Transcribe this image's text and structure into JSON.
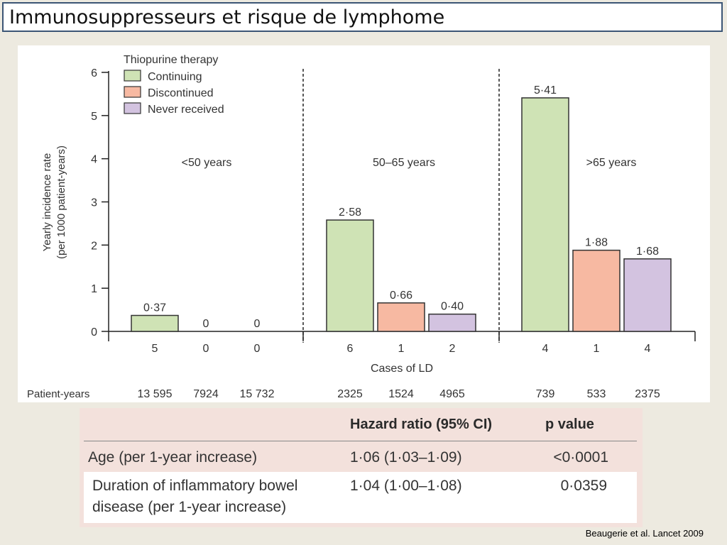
{
  "slide": {
    "title": "Immunosuppresseurs et risque de lymphome",
    "citation": "Beaugerie et al. Lancet 2009"
  },
  "chart_data": {
    "type": "bar",
    "ylabel_line1": "Yearly incidence rate",
    "ylabel_line2": "(per 1000 patient-years)",
    "xlabel": "Cases of LD",
    "ylim": [
      0,
      6
    ],
    "yticks": [
      "0",
      "1",
      "2",
      "3",
      "4",
      "5",
      "6"
    ],
    "legend": {
      "title": "Thiopurine therapy",
      "placement": "top-left"
    },
    "series": [
      {
        "name": "Continuing",
        "color": "#cfe3b5"
      },
      {
        "name": "Discontinued",
        "color": "#f7b9a2"
      },
      {
        "name": "Never received",
        "color": "#d3c3e0"
      }
    ],
    "groups": [
      {
        "label": "<50 years",
        "values": [
          0.37,
          0,
          0
        ],
        "value_labels": [
          "0·37",
          "0",
          "0"
        ],
        "cases": [
          "5",
          "0",
          "0"
        ],
        "patient_years": [
          "13 595",
          "7924",
          "15 732"
        ]
      },
      {
        "label": "50–65 years",
        "values": [
          2.58,
          0.66,
          0.4
        ],
        "value_labels": [
          "2·58",
          "0·66",
          "0·40"
        ],
        "cases": [
          "6",
          "1",
          "2"
        ],
        "patient_years": [
          "2325",
          "1524",
          "4965"
        ]
      },
      {
        "label": ">65 years",
        "values": [
          5.41,
          1.88,
          1.68
        ],
        "value_labels": [
          "5·41",
          "1·88",
          "1·68"
        ],
        "cases": [
          "4",
          "1",
          "4"
        ],
        "patient_years": [
          "739",
          "533",
          "2375"
        ]
      }
    ],
    "patient_years_label": "Patient-years",
    "group_separators": "dashed",
    "grid": false
  },
  "table": {
    "headers": {
      "hazard_ratio": "Hazard ratio (95% CI)",
      "p_value": "p value"
    },
    "rows": [
      {
        "label_line1": "Age (per 1-year increase)",
        "label_line2": "",
        "hazard_ratio": "1·06 (1·03–1·09)",
        "p_value": "<0·0001"
      },
      {
        "label_line1": "Duration of inflammatory bowel",
        "label_line2": "disease (per 1-year increase)",
        "hazard_ratio": "1·04 (1·00–1·08)",
        "p_value": "0·0359"
      }
    ],
    "colors": {
      "header_bg": "#f3e1dc",
      "row_alt_bg": "#ffffff"
    }
  }
}
